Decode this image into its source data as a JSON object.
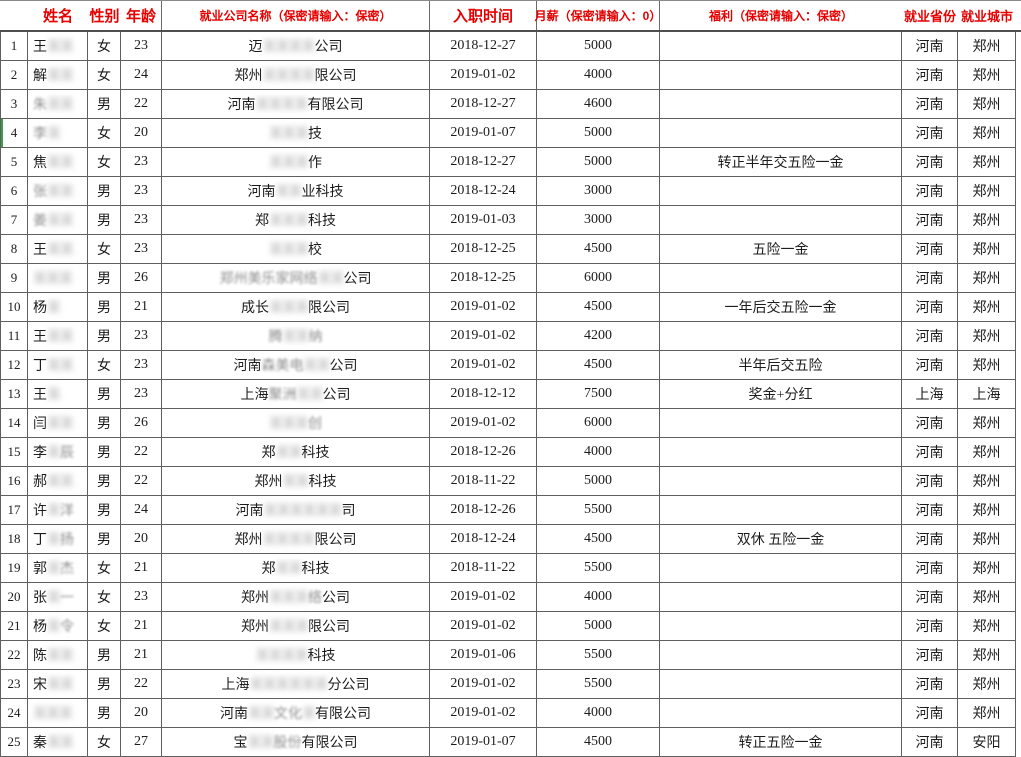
{
  "colors": {
    "header_text": "#e60000",
    "grid_line": "#5f5f5f",
    "body_text": "#1c1c1c",
    "selection_green": "#3a9d4a"
  },
  "selection": {
    "row_number": 4
  },
  "table": {
    "columns": [
      {
        "label": "姓名"
      },
      {
        "label": "性别"
      },
      {
        "label": "年龄"
      },
      {
        "label": "就业公司名称（保密请输入：保密）"
      },
      {
        "label": "入职时间"
      },
      {
        "label": "月薪（保密请输入：0）"
      },
      {
        "label": "福利（保密请输入：保密）"
      },
      {
        "label": "就业省份"
      },
      {
        "label": "就业城市"
      }
    ],
    "rows": [
      {
        "no": 1,
        "name": [
          {
            "t": "王",
            "s": "v"
          },
          {
            "t": "某某",
            "s": "b"
          }
        ],
        "gender": "女",
        "age": "23",
        "company": [
          {
            "t": "迈",
            "s": "v"
          },
          {
            "t": "某某某某",
            "s": "b"
          },
          {
            "t": "公司",
            "s": "v"
          }
        ],
        "date": "2018-12-27",
        "salary": "5000",
        "benefit": "",
        "province": "河南",
        "city": "郑州"
      },
      {
        "no": 2,
        "name": [
          {
            "t": "解",
            "s": "v"
          },
          {
            "t": "某某",
            "s": "b"
          }
        ],
        "gender": "女",
        "age": "24",
        "company": [
          {
            "t": "郑州",
            "s": "v"
          },
          {
            "t": "某某某某",
            "s": "b"
          },
          {
            "t": "限公司",
            "s": "v"
          }
        ],
        "date": "2019-01-02",
        "salary": "4000",
        "benefit": "",
        "province": "河南",
        "city": "郑州"
      },
      {
        "no": 3,
        "name": [
          {
            "t": "朱",
            "s": "f"
          },
          {
            "t": "某某",
            "s": "b"
          }
        ],
        "gender": "男",
        "age": "22",
        "company": [
          {
            "t": "河南",
            "s": "v"
          },
          {
            "t": "某某某某",
            "s": "b"
          },
          {
            "t": "有限公司",
            "s": "v"
          }
        ],
        "date": "2018-12-27",
        "salary": "4600",
        "benefit": "",
        "province": "河南",
        "city": "郑州"
      },
      {
        "no": 4,
        "name": [
          {
            "t": "李",
            "s": "f"
          },
          {
            "t": "某",
            "s": "b"
          }
        ],
        "gender": "女",
        "age": "20",
        "company": [
          {
            "t": "某某某",
            "s": "b"
          },
          {
            "t": "技",
            "s": "v"
          }
        ],
        "date": "2019-01-07",
        "salary": "5000",
        "benefit": "",
        "province": "河南",
        "city": "郑州"
      },
      {
        "no": 5,
        "name": [
          {
            "t": "焦",
            "s": "v"
          },
          {
            "t": "某某",
            "s": "b"
          }
        ],
        "gender": "女",
        "age": "23",
        "company": [
          {
            "t": "某某某",
            "s": "b"
          },
          {
            "t": "作",
            "s": "v"
          }
        ],
        "date": "2018-12-27",
        "salary": "5000",
        "benefit": "转正半年交五险一金",
        "province": "河南",
        "city": "郑州"
      },
      {
        "no": 6,
        "name": [
          {
            "t": "张",
            "s": "f"
          },
          {
            "t": "某某",
            "s": "b"
          }
        ],
        "gender": "男",
        "age": "23",
        "company": [
          {
            "t": "河南",
            "s": "v"
          },
          {
            "t": "某某",
            "s": "b"
          },
          {
            "t": "业科技",
            "s": "v"
          }
        ],
        "date": "2018-12-24",
        "salary": "3000",
        "benefit": "",
        "province": "河南",
        "city": "郑州"
      },
      {
        "no": 7,
        "name": [
          {
            "t": "姜",
            "s": "f"
          },
          {
            "t": "某某",
            "s": "b"
          }
        ],
        "gender": "男",
        "age": "23",
        "company": [
          {
            "t": "郑",
            "s": "v"
          },
          {
            "t": "某某某",
            "s": "b"
          },
          {
            "t": "科技",
            "s": "v"
          }
        ],
        "date": "2019-01-03",
        "salary": "3000",
        "benefit": "",
        "province": "河南",
        "city": "郑州"
      },
      {
        "no": 8,
        "name": [
          {
            "t": "王",
            "s": "v"
          },
          {
            "t": "某某",
            "s": "b"
          }
        ],
        "gender": "女",
        "age": "23",
        "company": [
          {
            "t": "某某某",
            "s": "b"
          },
          {
            "t": "校",
            "s": "v"
          }
        ],
        "date": "2018-12-25",
        "salary": "4500",
        "benefit": "五险一金",
        "province": "河南",
        "city": "郑州"
      },
      {
        "no": 9,
        "name": [
          {
            "t": "某某某",
            "s": "b"
          }
        ],
        "gender": "男",
        "age": "26",
        "company": [
          {
            "t": "郑州美乐家网络",
            "s": "f"
          },
          {
            "t": "某某",
            "s": "b"
          },
          {
            "t": "公司",
            "s": "v"
          }
        ],
        "date": "2018-12-25",
        "salary": "6000",
        "benefit": "",
        "province": "河南",
        "city": "郑州"
      },
      {
        "no": 10,
        "name": [
          {
            "t": "杨",
            "s": "v"
          },
          {
            "t": "某",
            "s": "b"
          }
        ],
        "gender": "男",
        "age": "21",
        "company": [
          {
            "t": "成长",
            "s": "v"
          },
          {
            "t": "某某某",
            "s": "b"
          },
          {
            "t": "限公司",
            "s": "v"
          }
        ],
        "date": "2019-01-02",
        "salary": "4500",
        "benefit": "一年后交五险一金",
        "province": "河南",
        "city": "郑州"
      },
      {
        "no": 11,
        "name": [
          {
            "t": "王",
            "s": "v"
          },
          {
            "t": "某某",
            "s": "b"
          }
        ],
        "gender": "男",
        "age": "23",
        "company": [
          {
            "t": "腾",
            "s": "f"
          },
          {
            "t": "某某",
            "s": "b"
          },
          {
            "t": "纳",
            "s": "f"
          }
        ],
        "date": "2019-01-02",
        "salary": "4200",
        "benefit": "",
        "province": "河南",
        "city": "郑州"
      },
      {
        "no": 12,
        "name": [
          {
            "t": "丁",
            "s": "v"
          },
          {
            "t": "某某",
            "s": "b"
          }
        ],
        "gender": "女",
        "age": "23",
        "company": [
          {
            "t": "河南",
            "s": "v"
          },
          {
            "t": "森美电",
            "s": "f"
          },
          {
            "t": "某某",
            "s": "b"
          },
          {
            "t": "公司",
            "s": "v"
          }
        ],
        "date": "2019-01-02",
        "salary": "4500",
        "benefit": "半年后交五险",
        "province": "河南",
        "city": "郑州"
      },
      {
        "no": 13,
        "name": [
          {
            "t": "王",
            "s": "v"
          },
          {
            "t": "某",
            "s": "b"
          }
        ],
        "gender": "男",
        "age": "23",
        "company": [
          {
            "t": "上海",
            "s": "v"
          },
          {
            "t": "聚洲",
            "s": "f"
          },
          {
            "t": "某某",
            "s": "b"
          },
          {
            "t": "公司",
            "s": "v"
          }
        ],
        "date": "2018-12-12",
        "salary": "7500",
        "benefit": "奖金+分红",
        "province": "上海",
        "city": "上海"
      },
      {
        "no": 14,
        "name": [
          {
            "t": "闫",
            "s": "v"
          },
          {
            "t": "某某",
            "s": "b"
          }
        ],
        "gender": "男",
        "age": "26",
        "company": [
          {
            "t": "某某某",
            "s": "b"
          },
          {
            "t": "创",
            "s": "f"
          }
        ],
        "date": "2019-01-02",
        "salary": "6000",
        "benefit": "",
        "province": "河南",
        "city": "郑州"
      },
      {
        "no": 15,
        "name": [
          {
            "t": "李",
            "s": "v"
          },
          {
            "t": "某",
            "s": "b"
          },
          {
            "t": "辰",
            "s": "f"
          }
        ],
        "gender": "男",
        "age": "22",
        "company": [
          {
            "t": "郑",
            "s": "v"
          },
          {
            "t": "某某",
            "s": "b"
          },
          {
            "t": "科技",
            "s": "v"
          }
        ],
        "date": "2018-12-26",
        "salary": "4000",
        "benefit": "",
        "province": "河南",
        "city": "郑州"
      },
      {
        "no": 16,
        "name": [
          {
            "t": "郝",
            "s": "v"
          },
          {
            "t": "某某",
            "s": "b"
          }
        ],
        "gender": "男",
        "age": "22",
        "company": [
          {
            "t": "郑州",
            "s": "v"
          },
          {
            "t": "某某",
            "s": "b"
          },
          {
            "t": "科技",
            "s": "v"
          }
        ],
        "date": "2018-11-22",
        "salary": "5000",
        "benefit": "",
        "province": "河南",
        "city": "郑州"
      },
      {
        "no": 17,
        "name": [
          {
            "t": "许",
            "s": "v"
          },
          {
            "t": "某",
            "s": "b"
          },
          {
            "t": "洋",
            "s": "f"
          }
        ],
        "gender": "男",
        "age": "24",
        "company": [
          {
            "t": "河南",
            "s": "v"
          },
          {
            "t": "某某某某某某",
            "s": "b"
          },
          {
            "t": "司",
            "s": "v"
          }
        ],
        "date": "2018-12-26",
        "salary": "5500",
        "benefit": "",
        "province": "河南",
        "city": "郑州"
      },
      {
        "no": 18,
        "name": [
          {
            "t": "丁",
            "s": "v"
          },
          {
            "t": "某",
            "s": "b"
          },
          {
            "t": "扬",
            "s": "f"
          }
        ],
        "gender": "男",
        "age": "20",
        "company": [
          {
            "t": "郑州",
            "s": "v"
          },
          {
            "t": "某某某某",
            "s": "b"
          },
          {
            "t": "限公司",
            "s": "v"
          }
        ],
        "date": "2018-12-24",
        "salary": "4500",
        "benefit": "双休 五险一金",
        "province": "河南",
        "city": "郑州"
      },
      {
        "no": 19,
        "name": [
          {
            "t": "郭",
            "s": "v"
          },
          {
            "t": "某",
            "s": "b"
          },
          {
            "t": "杰",
            "s": "f"
          }
        ],
        "gender": "女",
        "age": "21",
        "company": [
          {
            "t": "郑",
            "s": "v"
          },
          {
            "t": "某某",
            "s": "b"
          },
          {
            "t": "科技",
            "s": "v"
          }
        ],
        "date": "2018-11-22",
        "salary": "5500",
        "benefit": "",
        "province": "河南",
        "city": "郑州"
      },
      {
        "no": 20,
        "name": [
          {
            "t": "张",
            "s": "v"
          },
          {
            "t": "某",
            "s": "b"
          },
          {
            "t": "一",
            "s": "f"
          }
        ],
        "gender": "女",
        "age": "23",
        "company": [
          {
            "t": "郑州",
            "s": "v"
          },
          {
            "t": "某某某",
            "s": "b"
          },
          {
            "t": "络",
            "s": "f"
          },
          {
            "t": "公司",
            "s": "v"
          }
        ],
        "date": "2019-01-02",
        "salary": "4000",
        "benefit": "",
        "province": "河南",
        "city": "郑州"
      },
      {
        "no": 21,
        "name": [
          {
            "t": "杨",
            "s": "v"
          },
          {
            "t": "某",
            "s": "b"
          },
          {
            "t": "令",
            "s": "f"
          }
        ],
        "gender": "女",
        "age": "21",
        "company": [
          {
            "t": "郑州",
            "s": "v"
          },
          {
            "t": "某某某",
            "s": "b"
          },
          {
            "t": "限公司",
            "s": "v"
          }
        ],
        "date": "2019-01-02",
        "salary": "5000",
        "benefit": "",
        "province": "河南",
        "city": "郑州"
      },
      {
        "no": 22,
        "name": [
          {
            "t": "陈",
            "s": "v"
          },
          {
            "t": "某某",
            "s": "b"
          }
        ],
        "gender": "男",
        "age": "21",
        "company": [
          {
            "t": "某某某某",
            "s": "b"
          },
          {
            "t": "科技",
            "s": "v"
          }
        ],
        "date": "2019-01-06",
        "salary": "5500",
        "benefit": "",
        "province": "河南",
        "city": "郑州"
      },
      {
        "no": 23,
        "name": [
          {
            "t": "宋",
            "s": "v"
          },
          {
            "t": "某某",
            "s": "b"
          }
        ],
        "gender": "男",
        "age": "22",
        "company": [
          {
            "t": "上海",
            "s": "v"
          },
          {
            "t": "某某某某某某",
            "s": "b"
          },
          {
            "t": "分公司",
            "s": "v"
          }
        ],
        "date": "2019-01-02",
        "salary": "5500",
        "benefit": "",
        "province": "河南",
        "city": "郑州"
      },
      {
        "no": 24,
        "name": [
          {
            "t": "某某某",
            "s": "b"
          }
        ],
        "gender": "男",
        "age": "20",
        "company": [
          {
            "t": "河南",
            "s": "v"
          },
          {
            "t": "某某",
            "s": "b"
          },
          {
            "t": "文化",
            "s": "f"
          },
          {
            "t": "某",
            "s": "b"
          },
          {
            "t": "有限公司",
            "s": "v"
          }
        ],
        "date": "2019-01-02",
        "salary": "4000",
        "benefit": "",
        "province": "河南",
        "city": "郑州"
      },
      {
        "no": 25,
        "name": [
          {
            "t": "秦",
            "s": "v"
          },
          {
            "t": "某某",
            "s": "b"
          }
        ],
        "gender": "女",
        "age": "27",
        "company": [
          {
            "t": "宝",
            "s": "v"
          },
          {
            "t": "某某",
            "s": "b"
          },
          {
            "t": "股份",
            "s": "f"
          },
          {
            "t": "有限公司",
            "s": "v"
          }
        ],
        "date": "2019-01-07",
        "salary": "4500",
        "benefit": "转正五险一金",
        "province": "河南",
        "city": "安阳"
      }
    ]
  }
}
